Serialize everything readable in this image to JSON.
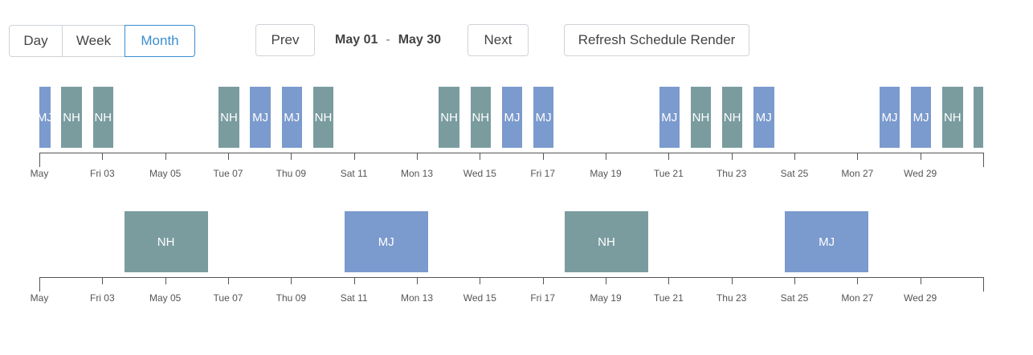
{
  "toolbar": {
    "view_buttons": [
      {
        "label": "Day",
        "active": false
      },
      {
        "label": "Week",
        "active": false
      },
      {
        "label": "Month",
        "active": true
      }
    ],
    "prev_label": "Prev",
    "next_label": "Next",
    "range_start": "May 01",
    "range_separator": "-",
    "range_end": "May 30",
    "refresh_label": "Refresh Schedule Render"
  },
  "colors": {
    "NH": "#7a9c9f",
    "MJ": "#7b9acd",
    "axis": "#555555",
    "active": "#3b8ed0"
  },
  "axis": {
    "start_day": 1,
    "end_day": 31,
    "tick_labels": [
      "May",
      "Fri 03",
      "May 05",
      "Tue 07",
      "Thu 09",
      "Sat 11",
      "Mon 13",
      "Wed 15",
      "Fri 17",
      "May 19",
      "Tue 21",
      "Thu 23",
      "Sat 25",
      "Mon 27",
      "Wed 29"
    ],
    "tick_days": [
      1,
      3,
      5,
      7,
      9,
      11,
      13,
      15,
      17,
      19,
      21,
      23,
      25,
      27,
      29
    ]
  },
  "timelines": [
    {
      "shifts": [
        {
          "label": "MJ",
          "start": 1.0,
          "end": 1.35
        },
        {
          "label": "NH",
          "start": 1.7,
          "end": 2.35
        },
        {
          "label": "NH",
          "start": 2.7,
          "end": 3.35
        },
        {
          "label": "NH",
          "start": 6.7,
          "end": 7.35
        },
        {
          "label": "MJ",
          "start": 7.7,
          "end": 8.35
        },
        {
          "label": "MJ",
          "start": 8.7,
          "end": 9.35
        },
        {
          "label": "NH",
          "start": 9.7,
          "end": 10.35
        },
        {
          "label": "NH",
          "start": 13.7,
          "end": 14.35
        },
        {
          "label": "NH",
          "start": 14.7,
          "end": 15.35
        },
        {
          "label": "MJ",
          "start": 15.7,
          "end": 16.35
        },
        {
          "label": "MJ",
          "start": 16.7,
          "end": 17.35
        },
        {
          "label": "MJ",
          "start": 20.7,
          "end": 21.35
        },
        {
          "label": "NH",
          "start": 21.7,
          "end": 22.35
        },
        {
          "label": "NH",
          "start": 22.7,
          "end": 23.35
        },
        {
          "label": "MJ",
          "start": 23.7,
          "end": 24.35
        },
        {
          "label": "MJ",
          "start": 27.7,
          "end": 28.35
        },
        {
          "label": "MJ",
          "start": 28.7,
          "end": 29.35
        },
        {
          "label": "NH",
          "start": 29.7,
          "end": 30.35
        },
        {
          "label": "",
          "color_key": "NH",
          "start": 30.7,
          "end": 31.0
        }
      ]
    },
    {
      "shifts": [
        {
          "label": "NH",
          "start": 3.7,
          "end": 6.35
        },
        {
          "label": "MJ",
          "start": 10.7,
          "end": 13.35
        },
        {
          "label": "NH",
          "start": 17.7,
          "end": 20.35
        },
        {
          "label": "MJ",
          "start": 24.7,
          "end": 27.35
        }
      ]
    }
  ]
}
